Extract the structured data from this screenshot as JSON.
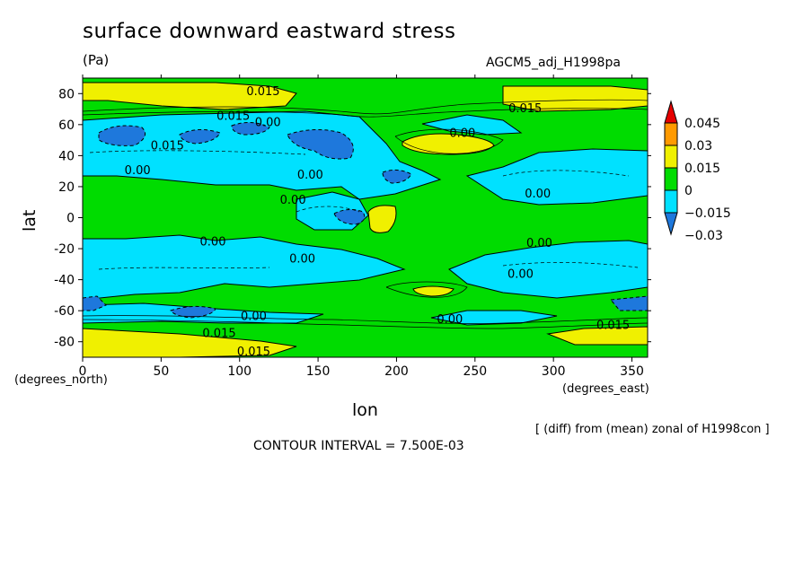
{
  "chart_data": {
    "type": "heatmap",
    "title": "surface downward eastward stress",
    "units": "(Pa)",
    "experiment": "AGCM5_adj_H1998pa",
    "xlabel": "lon",
    "ylabel": "lat",
    "x_units": "(degrees_east)",
    "y_units": "(degrees_north)",
    "xlim": [
      0,
      360
    ],
    "ylim": [
      -90,
      90
    ],
    "x_ticks": [
      0,
      50,
      100,
      150,
      200,
      250,
      300,
      350
    ],
    "y_ticks": [
      -80,
      -60,
      -40,
      -20,
      0,
      20,
      40,
      60,
      80
    ],
    "x_tick_labels": [
      "0",
      "50",
      "100",
      "150",
      "200",
      "250",
      "300",
      "350"
    ],
    "y_tick_labels": [
      "-80",
      "-60",
      "-40",
      "-20",
      "0",
      "20",
      "40",
      "60",
      "80"
    ],
    "colorbar": {
      "labels": [
        "0.045",
        "0.03",
        "0.015",
        "0",
        "−0.015",
        "−0.03"
      ],
      "levels": [
        -0.03,
        -0.015,
        0,
        0.015,
        0.03,
        0.045
      ],
      "colors": [
        "#1e78dc",
        "#00e1ff",
        "#00dc00",
        "#f0f000",
        "#ff9a00",
        "#e60000"
      ]
    },
    "contour_labels": [
      {
        "text": "0.015",
        "lon": 115,
        "lat": 82
      },
      {
        "text": "0.015",
        "lon": 282,
        "lat": 71
      },
      {
        "text": "0.015",
        "lon": 96,
        "lat": 66
      },
      {
        "text": "0.00",
        "lon": 118,
        "lat": 62
      },
      {
        "text": "0.00",
        "lon": 242,
        "lat": 55
      },
      {
        "text": "0.015",
        "lon": 54,
        "lat": 47
      },
      {
        "text": "0.00",
        "lon": 35,
        "lat": 31
      },
      {
        "text": "0.00",
        "lon": 145,
        "lat": 28
      },
      {
        "text": "0.00",
        "lon": 134,
        "lat": 12
      },
      {
        "text": "0.00",
        "lon": 290,
        "lat": 16
      },
      {
        "text": "0.00",
        "lon": 83,
        "lat": -15
      },
      {
        "text": "0.00",
        "lon": 140,
        "lat": -26
      },
      {
        "text": "0.00",
        "lon": 291,
        "lat": -16
      },
      {
        "text": "0.00",
        "lon": 279,
        "lat": -36
      },
      {
        "text": "0.00",
        "lon": 109,
        "lat": -63
      },
      {
        "text": "0.00",
        "lon": 234,
        "lat": -65
      },
      {
        "text": "0.015",
        "lon": 87,
        "lat": -74
      },
      {
        "text": "0.015",
        "lon": 338,
        "lat": -69
      },
      {
        "text": "0.015",
        "lon": 109,
        "lat": -86
      }
    ]
  },
  "footer": {
    "diff_note": "[ (diff) from (mean) zonal of H1998con ]",
    "contour_interval": "CONTOUR INTERVAL = 7.500E-03"
  }
}
